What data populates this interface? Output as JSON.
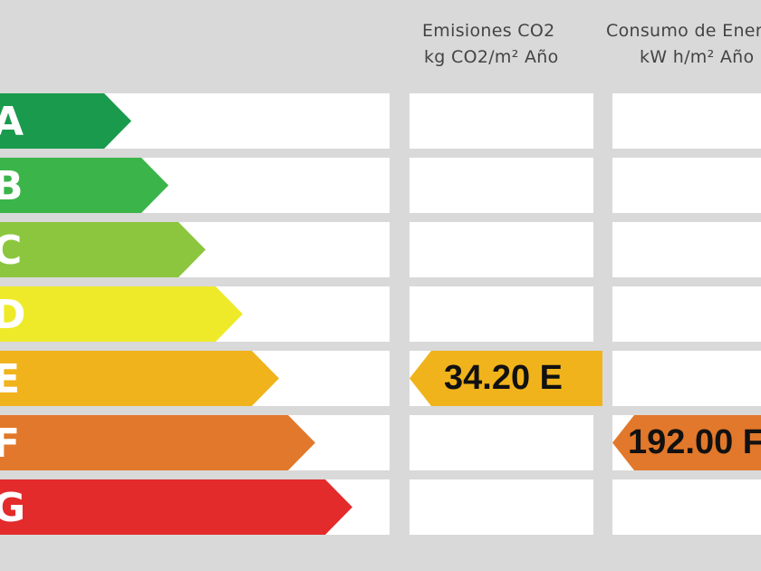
{
  "columns": {
    "emissions": {
      "line1": "Emisiones CO2",
      "line2": "kg CO2/m² Año"
    },
    "consumption": {
      "line1": "Consumo de Energía",
      "line2": "kW h/m² Año"
    }
  },
  "ratings": [
    {
      "letter": "A",
      "color": "#1a9a4d"
    },
    {
      "letter": "B",
      "color": "#3bb54a"
    },
    {
      "letter": "C",
      "color": "#8cc63f"
    },
    {
      "letter": "D",
      "color": "#eeea2a"
    },
    {
      "letter": "E",
      "color": "#f1b31c"
    },
    {
      "letter": "F",
      "color": "#e2782b"
    },
    {
      "letter": "G",
      "color": "#e32b2b"
    }
  ],
  "emissions_value": {
    "text": "34.20 E",
    "rating": "E",
    "color": "#f1b31c"
  },
  "consumption_value": {
    "text": "192.00 F",
    "rating": "F",
    "color": "#e2782b"
  }
}
